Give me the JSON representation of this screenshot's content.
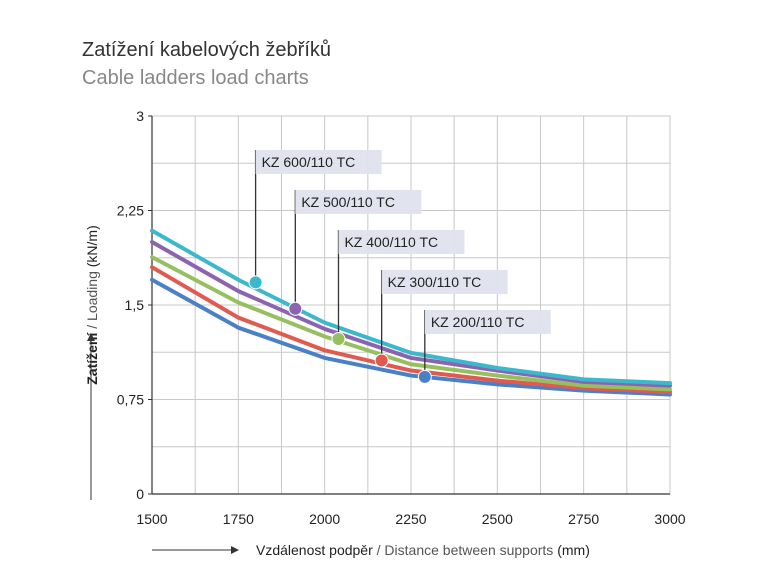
{
  "chart_data": {
    "type": "line",
    "title": "Zatížení kabelových žebříků",
    "subtitle": "Cable ladders load charts",
    "xlabel_cz": "Vzdálenost podpěr",
    "xlabel_en": " / Distance between supports",
    "xlabel_unit": " (mm)",
    "ylabel_cz": "Zatížení",
    "ylabel_en": " / Loading",
    "ylabel_unit": " (kN/m)",
    "xlim": [
      1500,
      3000
    ],
    "ylim": [
      0,
      3
    ],
    "x_ticks": [
      "1500",
      "1750",
      "2000",
      "2250",
      "2500",
      "2750",
      "3000"
    ],
    "x_tick_values": [
      1500,
      1750,
      2000,
      2250,
      2500,
      2750,
      3000
    ],
    "y_ticks": [
      "0",
      "0,75",
      "1,5",
      "2,25",
      "3"
    ],
    "y_tick_values": [
      0,
      0.75,
      1.5,
      2.25,
      3
    ],
    "grid": true,
    "x": [
      1500,
      1750,
      2000,
      2250,
      2500,
      2750,
      3000
    ],
    "series": [
      {
        "name": "KZ 600/110 TC",
        "color": "#3cb8cc",
        "values": [
          2.09,
          1.7,
          1.36,
          1.12,
          1.0,
          0.91,
          0.88
        ],
        "marker_x": 1800,
        "marker_y": 1.68
      },
      {
        "name": "KZ 500/110 TC",
        "color": "#8a64b0",
        "values": [
          2.0,
          1.61,
          1.31,
          1.08,
          0.98,
          0.89,
          0.86
        ],
        "marker_x": 1915,
        "marker_y": 1.47
      },
      {
        "name": "KZ 400/110 TC",
        "color": "#96c060",
        "values": [
          1.88,
          1.52,
          1.25,
          1.03,
          0.94,
          0.86,
          0.83
        ],
        "marker_x": 2040,
        "marker_y": 1.23
      },
      {
        "name": "KZ 300/110 TC",
        "color": "#e05a50",
        "values": [
          1.8,
          1.4,
          1.14,
          0.98,
          0.9,
          0.84,
          0.81
        ],
        "marker_x": 2165,
        "marker_y": 1.06
      },
      {
        "name": "KZ 200/110 TC",
        "color": "#4a80c8",
        "values": [
          1.7,
          1.32,
          1.08,
          0.94,
          0.87,
          0.82,
          0.79
        ],
        "marker_x": 2290,
        "marker_y": 0.93
      }
    ]
  }
}
